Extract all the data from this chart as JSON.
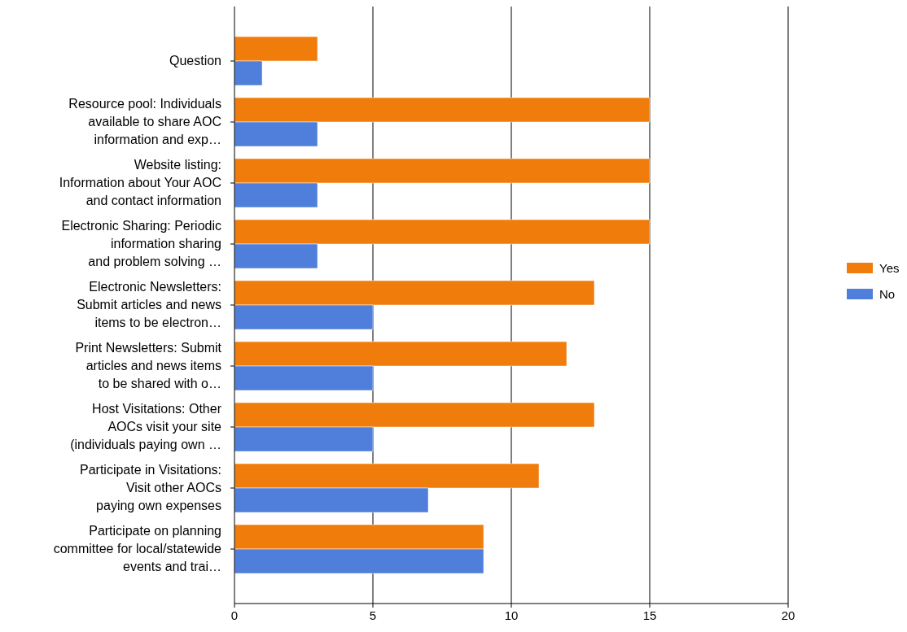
{
  "chart_data": {
    "type": "bar",
    "orientation": "horizontal",
    "categories": [
      "Question",
      "Resource pool: Individuals\navailable to share AOC\ninformation and exp…",
      "Website listing:\nInformation about Your AOC\nand contact information",
      "Electronic Sharing: Periodic\ninformation sharing\nand problem solving …",
      "Electronic Newsletters:\nSubmit articles and news\nitems to be electron…",
      "Print Newsletters: Submit\narticles and news items\nto be shared with o…",
      "Host Visitations: Other\nAOCs visit your site\n(individuals paying own …",
      "Participate in Visitations:\nVisit other AOCs\npaying own expenses",
      "Participate on planning\ncommittee for local/statewide\nevents and trai…"
    ],
    "series": [
      {
        "name": "Yes",
        "color": "#f07c0c",
        "values": [
          3,
          15,
          15,
          15,
          13,
          12,
          13,
          11,
          9
        ]
      },
      {
        "name": "No",
        "color": "#4f7fdb",
        "values": [
          1,
          3,
          3,
          3,
          5,
          5,
          5,
          7,
          9
        ]
      }
    ],
    "xlim": [
      0,
      20
    ],
    "xticks": [
      0,
      5,
      10,
      15,
      20
    ],
    "grid": "x",
    "legend": "right"
  }
}
